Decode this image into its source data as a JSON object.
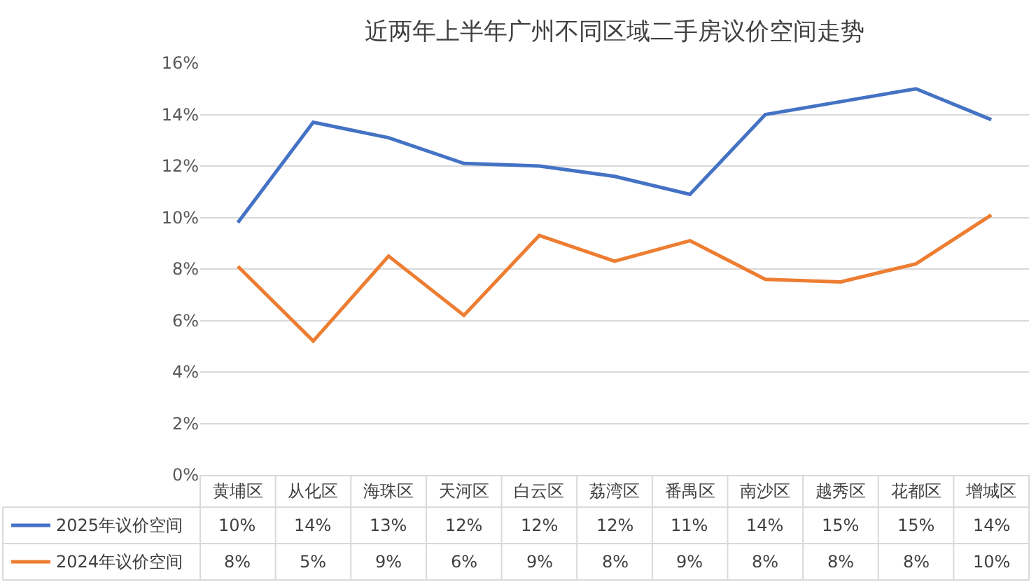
{
  "chart_data": {
    "type": "line",
    "title": "近两年上半年广州不同区域二手房议价空间走势",
    "categories": [
      "黄埔区",
      "从化区",
      "海珠区",
      "天河区",
      "白云区",
      "荔湾区",
      "番禺区",
      "南沙区",
      "越秀区",
      "花都区",
      "增城区"
    ],
    "series": [
      {
        "name": "2025年议价空间",
        "color": "#4472c4",
        "values": [
          9.8,
          13.7,
          13.1,
          12.1,
          12.0,
          11.6,
          10.9,
          14.0,
          14.5,
          15.0,
          13.8
        ],
        "value_labels": [
          "10%",
          "14%",
          "13%",
          "12%",
          "12%",
          "12%",
          "11%",
          "14%",
          "15%",
          "15%",
          "14%"
        ]
      },
      {
        "name": "2024年议价空间",
        "color": "#ed7d31",
        "values": [
          8.1,
          5.2,
          8.5,
          6.2,
          9.3,
          8.3,
          9.1,
          7.6,
          7.5,
          8.2,
          10.1
        ],
        "value_labels": [
          "8%",
          "5%",
          "9%",
          "6%",
          "9%",
          "8%",
          "9%",
          "8%",
          "8%",
          "8%",
          "10%"
        ]
      }
    ],
    "ylim": [
      0,
      16
    ],
    "yticks": [
      {
        "value": 0,
        "label": "0%"
      },
      {
        "value": 2,
        "label": "2%"
      },
      {
        "value": 4,
        "label": "4%"
      },
      {
        "value": 6,
        "label": "6%"
      },
      {
        "value": 8,
        "label": "8%"
      },
      {
        "value": 10,
        "label": "10%"
      },
      {
        "value": 12,
        "label": "12%"
      },
      {
        "value": 14,
        "label": "14%"
      },
      {
        "value": 16,
        "label": "16%"
      }
    ],
    "grid": "y",
    "marker": "none",
    "line_style": "solid",
    "legend": "bottom left"
  }
}
